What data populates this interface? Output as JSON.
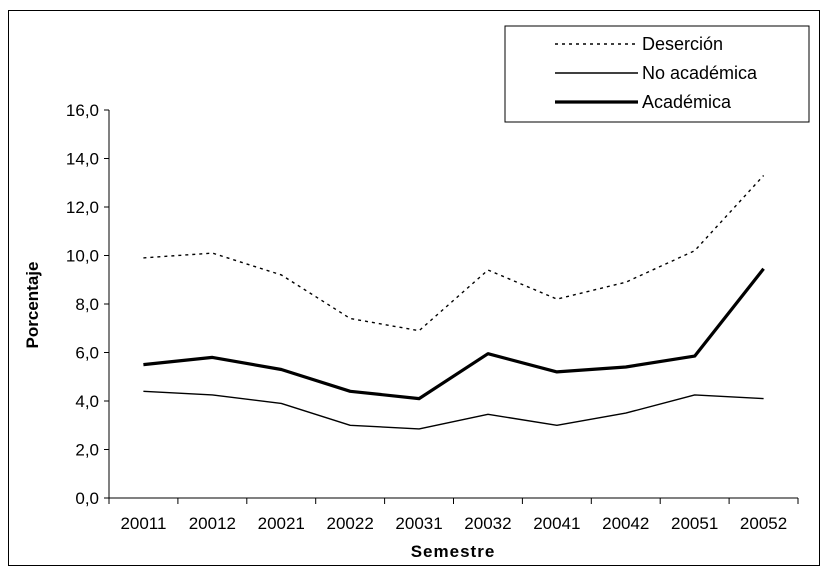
{
  "chart_data": {
    "type": "line",
    "title": "",
    "xlabel": "Semestre",
    "ylabel": "Porcentaje",
    "categories": [
      "20011",
      "20012",
      "20021",
      "20022",
      "20031",
      "20032",
      "20041",
      "20042",
      "20051",
      "20052"
    ],
    "y_ticks": [
      "0,0",
      "2,0",
      "4,0",
      "6,0",
      "8,0",
      "10,0",
      "12,0",
      "14,0",
      "16,0"
    ],
    "ylim": [
      0,
      16
    ],
    "grid": false,
    "legend_position": "top-right",
    "series": [
      {
        "name": "Deserción",
        "style": "dotted",
        "color": "#000000",
        "values": [
          9.9,
          10.1,
          9.2,
          7.4,
          6.9,
          9.4,
          8.2,
          8.9,
          10.2,
          13.3
        ]
      },
      {
        "name": "No académica",
        "style": "thin",
        "color": "#000000",
        "values": [
          4.4,
          4.25,
          3.9,
          3.0,
          2.85,
          3.45,
          3.0,
          3.5,
          4.25,
          4.1
        ]
      },
      {
        "name": "Académica",
        "style": "thick",
        "color": "#000000",
        "values": [
          5.5,
          5.8,
          5.3,
          4.4,
          4.1,
          5.95,
          5.2,
          5.4,
          5.85,
          9.45
        ]
      }
    ]
  }
}
